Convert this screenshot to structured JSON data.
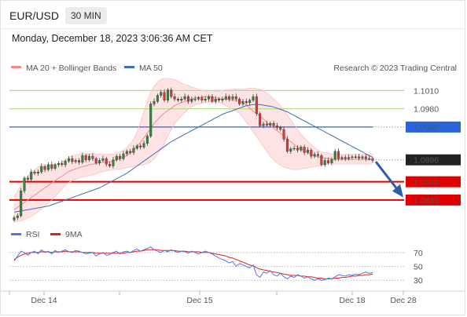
{
  "header": {
    "symbol": "EUR/USD",
    "timeframe": "30 MIN",
    "datetime": "Monday, December 18, 2023 3:06:36 AM CET"
  },
  "colors": {
    "bollinger": "#f28b8b",
    "bollinger_fill": "#fde3e3",
    "ma50": "#3f6fb5",
    "candle_up": "#2d8a3c",
    "candle_down": "#d63a3a",
    "target_line": "#e00000",
    "resistance_line": "#b8da8e",
    "resistance_text": "#5c9e16",
    "pivot_line": "#2a64d8",
    "arrow": "#2e5ea8",
    "rsi": "#5577dd",
    "rsi_ma": "#e02020"
  },
  "chart_data": [
    {
      "type": "candlestick",
      "legend": [
        {
          "name": "MA 20 + Bollinger Bands",
          "color": "#f28b8b"
        },
        {
          "name": "MA 50",
          "color": "#3f6fb5"
        }
      ],
      "copyright": "Research © 2023 Trading Central",
      "x_labels": [
        "Dec 14",
        "Dec 15",
        "Dec 18",
        "Dec 28"
      ],
      "ylim": [
        1.0795,
        1.1035
      ],
      "levels": [
        {
          "label": "1.1010",
          "value": 1.101,
          "kind": "resistance"
        },
        {
          "label": "1.0980",
          "value": 1.098,
          "kind": "resistance"
        },
        {
          "label": "1.0950",
          "value": 1.095,
          "kind": "pivot"
        },
        {
          "label": "1.0896",
          "value": 1.0896,
          "kind": "last"
        },
        {
          "label": "1.0860",
          "value": 1.086,
          "kind": "target"
        },
        {
          "label": "1.0830",
          "value": 1.083,
          "kind": "target"
        }
      ],
      "close": [
        1.0801,
        1.0804,
        1.0845,
        1.0866,
        1.0864,
        1.0876,
        1.0874,
        1.0876,
        1.0885,
        1.088,
        1.0888,
        1.0882,
        1.0888,
        1.089,
        1.0888,
        1.0894,
        1.0898,
        1.0893,
        1.0895,
        1.0892,
        1.0903,
        1.0896,
        1.0902,
        1.0898,
        1.0891,
        1.0895,
        1.0898,
        1.0889,
        1.0886,
        1.0896,
        1.0902,
        1.0898,
        1.0906,
        1.091,
        1.0908,
        1.0915,
        1.0919,
        1.0917,
        1.0923,
        1.0935,
        1.0988,
        1.0992,
        1.1002,
        1.1007,
        1.0994,
        1.1011,
        1.1,
        1.0996,
        1.0994,
        1.0996,
        1.1,
        1.0992,
        1.0996,
        1.0996,
        1.0998,
        1.0994,
        1.0996,
        1.1,
        1.0992,
        1.0996,
        1.0994,
        1.0996,
        1.1,
        1.0996,
        1.1,
        1.0996,
        1.0988,
        1.0992,
        1.099,
        1.0994,
        1.1,
        1.0972,
        1.0952,
        1.0955,
        1.0953,
        1.0956,
        1.0952,
        1.0949,
        1.0946,
        1.093,
        1.091,
        1.0914,
        1.0915,
        1.0912,
        1.0917,
        1.0908,
        1.0912,
        1.0902,
        1.0905,
        1.0903,
        1.0888,
        1.0895,
        1.0891,
        1.0897,
        1.091,
        1.0898,
        1.09,
        1.0898,
        1.09,
        1.0901,
        1.0901,
        1.0899,
        1.0901,
        1.0898,
        1.0898,
        1.0895
      ],
      "ma20": [
        1.0814,
        1.0818,
        1.0822,
        1.0826,
        1.083,
        1.0834,
        1.0838,
        1.0842,
        1.0846,
        1.085,
        1.0854,
        1.0858,
        1.0862,
        1.0866,
        1.0869,
        1.0873,
        1.0877,
        1.0879,
        1.0881,
        1.0883,
        1.0885,
        1.0886,
        1.0888,
        1.0889,
        1.089,
        1.0891,
        1.0892,
        1.0892,
        1.0893,
        1.0894,
        1.0896,
        1.0898,
        1.09,
        1.0903,
        1.0907,
        1.0912,
        1.0918,
        1.0925,
        1.0932,
        1.094,
        1.0948,
        1.0956,
        1.0962,
        1.0968,
        1.0973,
        1.0977,
        1.0981,
        1.0985,
        1.0988,
        1.099,
        1.0992,
        1.0994,
        1.0996,
        1.0998,
        1.0999,
        1.0999,
        1.1,
        1.1,
        1.0999,
        1.0998,
        1.0997,
        1.0996,
        1.0996,
        1.0995,
        1.0994,
        1.0993,
        1.0992,
        1.099,
        1.0986,
        1.0981,
        1.0976,
        1.0972,
        1.0968,
        1.0963,
        1.0958,
        1.0952,
        1.0948,
        1.0944,
        1.094,
        1.0935,
        1.093,
        1.0926,
        1.0921,
        1.0917,
        1.0914,
        1.0911,
        1.0908,
        1.0905,
        1.0903,
        1.0901,
        1.09,
        1.0899,
        1.0898,
        1.0897,
        1.0897,
        1.0897,
        1.0897,
        1.0897,
        1.0897,
        1.0897,
        1.0897,
        1.0897,
        1.0897,
        1.0897,
        1.0897,
        1.0897
      ],
      "bb_upper": [
        1.0835,
        1.0845,
        1.0855,
        1.0863,
        1.087,
        1.0876,
        1.088,
        1.0884,
        1.0887,
        1.0888,
        1.0888,
        1.0888,
        1.0889,
        1.089,
        1.0892,
        1.0896,
        1.09,
        1.0903,
        1.0904,
        1.0905,
        1.0906,
        1.0906,
        1.0906,
        1.0907,
        1.0906,
        1.0905,
        1.0905,
        1.0905,
        1.0905,
        1.0906,
        1.0907,
        1.0909,
        1.0912,
        1.0916,
        1.0922,
        1.093,
        1.0942,
        1.0958,
        1.0975,
        1.0992,
        1.1008,
        1.1017,
        1.1024,
        1.1028,
        1.103,
        1.103,
        1.1029,
        1.1028,
        1.1025,
        1.1022,
        1.102,
        1.1018,
        1.1016,
        1.1014,
        1.1012,
        1.101,
        1.1009,
        1.1008,
        1.1008,
        1.1008,
        1.1009,
        1.101,
        1.1011,
        1.1011,
        1.1012,
        1.1012,
        1.1012,
        1.1012,
        1.1013,
        1.1014,
        1.1014,
        1.1013,
        1.1012,
        1.101,
        1.1006,
        1.1001,
        1.0996,
        1.0991,
        1.0985,
        1.0978,
        1.097,
        1.0962,
        1.0954,
        1.0946,
        1.0938,
        1.0932,
        1.0926,
        1.0921,
        1.0916,
        1.0912,
        1.0909,
        1.0908,
        1.0907,
        1.0906,
        1.0905,
        1.0905,
        1.0905,
        1.0905,
        1.0905,
        1.0905,
        1.0905,
        1.0905,
        1.0905,
        1.0905,
        1.0905,
        1.0905
      ],
      "bb_lower": [
        1.0794,
        1.0795,
        1.0796,
        1.0798,
        1.08,
        1.0803,
        1.0807,
        1.0811,
        1.0815,
        1.082,
        1.0825,
        1.083,
        1.0836,
        1.0842,
        1.0848,
        1.0854,
        1.0859,
        1.0862,
        1.0864,
        1.0866,
        1.0868,
        1.0869,
        1.087,
        1.0871,
        1.0873,
        1.0875,
        1.0877,
        1.0878,
        1.0879,
        1.088,
        1.088,
        1.0881,
        1.0882,
        1.0883,
        1.0884,
        1.0885,
        1.0886,
        1.0887,
        1.0888,
        1.089,
        1.0893,
        1.0898,
        1.0905,
        1.0913,
        1.0923,
        1.0935,
        1.0946,
        1.0955,
        1.0962,
        1.0968,
        1.0974,
        1.0979,
        1.0983,
        1.0986,
        1.0988,
        1.0989,
        1.099,
        1.0991,
        1.0992,
        1.0991,
        1.099,
        1.0988,
        1.0985,
        1.0982,
        1.0979,
        1.0976,
        1.0972,
        1.0966,
        1.0958,
        1.095,
        1.0942,
        1.0934,
        1.0926,
        1.0918,
        1.091,
        1.0902,
        1.0896,
        1.0891,
        1.0887,
        1.0884,
        1.0882,
        1.0881,
        1.088,
        1.088,
        1.0881,
        1.0882,
        1.0883,
        1.0884,
        1.0885,
        1.0886,
        1.0887,
        1.0888,
        1.0889,
        1.0889,
        1.0889,
        1.0889,
        1.0889,
        1.0889,
        1.0889,
        1.0889,
        1.0889,
        1.0889,
        1.0889,
        1.0889,
        1.0889,
        1.0889
      ],
      "ma50": [
        1.081,
        1.0811,
        1.0812,
        1.0813,
        1.0814,
        1.0815,
        1.0816,
        1.0817,
        1.0818,
        1.0819,
        1.082,
        1.0822,
        1.0824,
        1.0826,
        1.0828,
        1.083,
        1.0832,
        1.0834,
        1.0836,
        1.0838,
        1.084,
        1.0842,
        1.0844,
        1.0846,
        1.0848,
        1.085,
        1.0853,
        1.0856,
        1.0859,
        1.0862,
        1.0865,
        1.0868,
        1.0871,
        1.0874,
        1.0878,
        1.0882,
        1.0886,
        1.089,
        1.0894,
        1.0898,
        1.0902,
        1.0906,
        1.091,
        1.0914,
        1.0918,
        1.0922,
        1.0926,
        1.0929,
        1.0932,
        1.0935,
        1.0938,
        1.0941,
        1.0944,
        1.0947,
        1.095,
        1.0953,
        1.0956,
        1.0959,
        1.0962,
        1.0965,
        1.0968,
        1.0971,
        1.0973,
        1.0975,
        1.0977,
        1.0979,
        1.0981,
        1.0983,
        1.0985,
        1.0986,
        1.0987,
        1.0987,
        1.0987,
        1.0986,
        1.0985,
        1.0984,
        1.0983,
        1.0981,
        1.0979,
        1.0977,
        1.0975,
        1.0972,
        1.0969,
        1.0966,
        1.0963,
        1.096,
        1.0957,
        1.0954,
        1.0951,
        1.0948,
        1.0945,
        1.0942,
        1.0939,
        1.0936,
        1.0933,
        1.093,
        1.0927,
        1.0924,
        1.0921,
        1.0918,
        1.0915,
        1.0912,
        1.0909,
        1.0906,
        1.0903,
        1.09
      ]
    },
    {
      "type": "line",
      "legend": [
        {
          "name": "RSI",
          "color": "#5577dd"
        },
        {
          "name": "9MA",
          "color": "#e02020"
        }
      ],
      "ylim": [
        20,
        80
      ],
      "y_ticks": [
        70,
        50,
        30
      ],
      "rsi": [
        58,
        65,
        72,
        70,
        66,
        70,
        72,
        68,
        74,
        70,
        72,
        68,
        73,
        70,
        72,
        74,
        71,
        70,
        73,
        72,
        70,
        68,
        69,
        70,
        65,
        68,
        70,
        66,
        67,
        70,
        72,
        68,
        71,
        72,
        70,
        73,
        75,
        72,
        74,
        76,
        78,
        74,
        72,
        70,
        73,
        71,
        74,
        72,
        70,
        72,
        71,
        69,
        72,
        70,
        68,
        70,
        72,
        70,
        68,
        65,
        62,
        60,
        58,
        55,
        57,
        50,
        54,
        52,
        50,
        48,
        52,
        38,
        34,
        42,
        40,
        44,
        38,
        36,
        40,
        35,
        32,
        36,
        34,
        38,
        36,
        33,
        35,
        32,
        30,
        32,
        30,
        31,
        33,
        32,
        35,
        38,
        37,
        36,
        38,
        37,
        39,
        38,
        40,
        42,
        40,
        41
      ],
      "rsi_ma": [
        60,
        63,
        66,
        68,
        69,
        70,
        70,
        70,
        71,
        71,
        71,
        70,
        71,
        71,
        71,
        72,
        71,
        71,
        71,
        71,
        70,
        70,
        70,
        70,
        69,
        69,
        69,
        69,
        69,
        69,
        69,
        69,
        69,
        70,
        70,
        71,
        72,
        72,
        73,
        74,
        74,
        74,
        74,
        73,
        73,
        73,
        73,
        73,
        72,
        72,
        72,
        71,
        71,
        71,
        71,
        70,
        70,
        70,
        69,
        68,
        67,
        66,
        65,
        63,
        62,
        60,
        58,
        56,
        54,
        52,
        51,
        48,
        46,
        45,
        44,
        43,
        42,
        41,
        40,
        39,
        38,
        37,
        37,
        37,
        36,
        36,
        35,
        35,
        34,
        33,
        33,
        32,
        32,
        32,
        33,
        33,
        34,
        34,
        35,
        36,
        36,
        37,
        37,
        38,
        38,
        39
      ]
    }
  ]
}
